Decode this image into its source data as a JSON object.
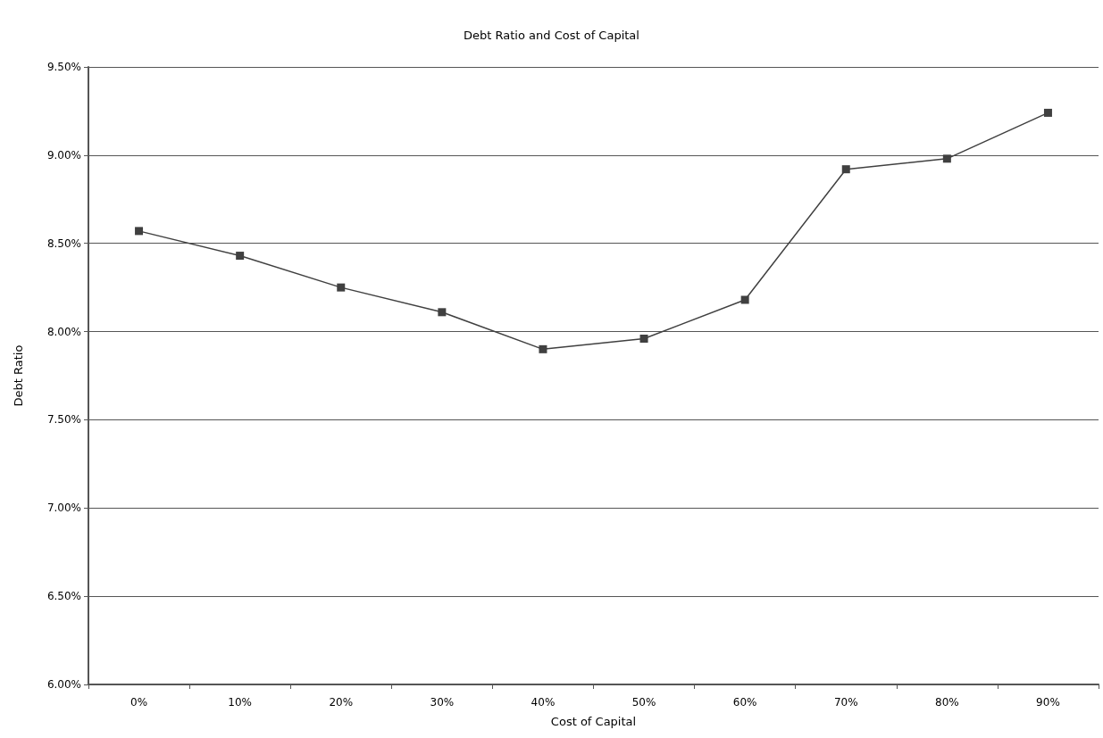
{
  "chart_data": {
    "type": "line",
    "title": "Debt Ratio and Cost of Capital",
    "xlabel": "Cost of Capital",
    "ylabel": "Debt Ratio",
    "categories": [
      "0%",
      "10%",
      "20%",
      "30%",
      "40%",
      "50%",
      "60%",
      "70%",
      "80%",
      "90%"
    ],
    "series": [
      {
        "color": "#404040",
        "values": [
          8.57,
          8.43,
          8.25,
          8.11,
          7.9,
          7.96,
          8.18,
          8.92,
          8.98,
          9.24
        ]
      }
    ],
    "ylim": [
      6,
      9.5
    ],
    "yticks": [
      {
        "value": 6,
        "label": "6.00%"
      },
      {
        "value": 6.5,
        "label": "6.50%"
      },
      {
        "value": 7,
        "label": "7.00%"
      },
      {
        "value": 7.5,
        "label": "7.50%"
      },
      {
        "value": 8,
        "label": "8.00%"
      },
      {
        "value": 8.5,
        "label": "8.50%"
      },
      {
        "value": 9,
        "label": "9.00%"
      },
      {
        "value": 9.5,
        "label": "9.50%"
      }
    ],
    "grid": "y",
    "marker": "square",
    "line_style": "solid"
  }
}
